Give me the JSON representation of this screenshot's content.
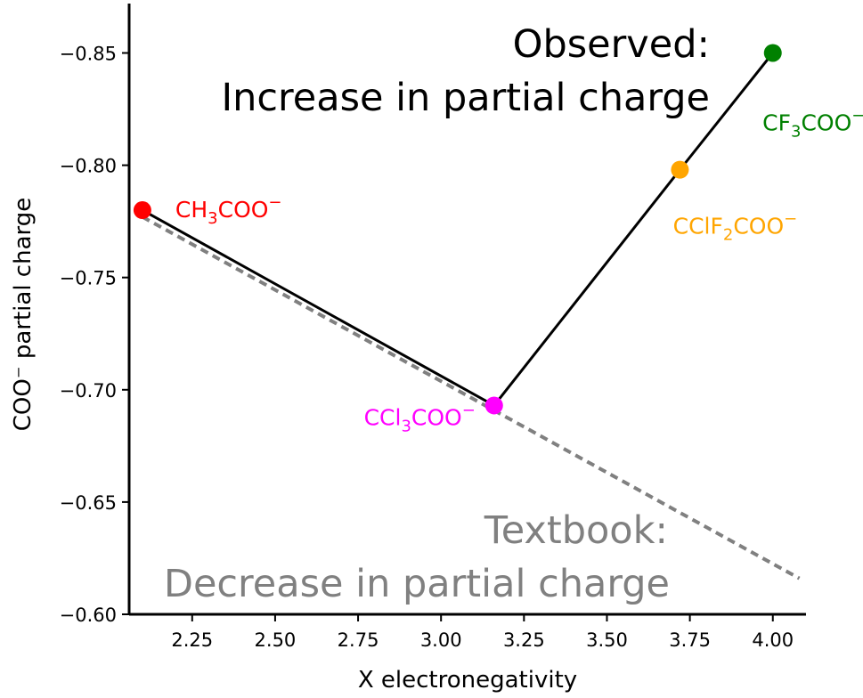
{
  "chart_data": {
    "type": "scatter",
    "xlabel": "X electronegativity",
    "ylabel": "COO⁻ partial charge",
    "xlim": [
      2.06,
      4.1
    ],
    "ylim": [
      -0.6,
      -0.872
    ],
    "y_axis_inverted": true,
    "xticks": [
      2.25,
      2.5,
      2.75,
      3.0,
      3.25,
      3.5,
      3.75,
      4.0
    ],
    "xtick_labels": [
      "2.25",
      "2.50",
      "2.75",
      "3.00",
      "3.25",
      "3.50",
      "3.75",
      "4.00"
    ],
    "yticks": [
      -0.85,
      -0.8,
      -0.75,
      -0.7,
      -0.65,
      -0.6
    ],
    "ytick_labels": [
      "−0.85",
      "−0.80",
      "−0.75",
      "−0.70",
      "−0.65",
      "−0.60"
    ],
    "grid": false,
    "points": [
      {
        "label_pre": "CH",
        "label_sub": "3",
        "label_post": "COO",
        "label_sup": "−",
        "x": 2.1,
        "y": -0.78,
        "color": "#ff0000"
      },
      {
        "label_pre": "CCl",
        "label_sub": "3",
        "label_post": "COO",
        "label_sup": "−",
        "x": 3.16,
        "y": -0.693,
        "color": "#ff00ff"
      },
      {
        "label_pre": "CClF",
        "label_sub": "2",
        "label_post": "COO",
        "label_sup": "−",
        "x": 3.72,
        "y": -0.798,
        "color": "#ffa500"
      },
      {
        "label_pre": "CF",
        "label_sub": "3",
        "label_post": "COO",
        "label_sup": "−",
        "x": 4.0,
        "y": -0.85,
        "color": "#008000"
      }
    ],
    "observed_line": {
      "x": [
        2.1,
        3.16,
        3.72,
        4.0
      ],
      "y": [
        -0.78,
        -0.693,
        -0.798,
        -0.85
      ],
      "color": "#000000",
      "style": "solid"
    },
    "textbook_line": {
      "x": [
        2.1,
        4.08
      ],
      "y": [
        -0.777,
        -0.616
      ],
      "color": "#808080",
      "style": "dashed"
    },
    "annotations": {
      "observed": {
        "line1": "Observed:",
        "line2": "Increase in partial charge",
        "color": "#000000"
      },
      "textbook": {
        "line1": "Textbook:",
        "line2": "Decrease in partial charge",
        "color": "#808080"
      }
    }
  }
}
